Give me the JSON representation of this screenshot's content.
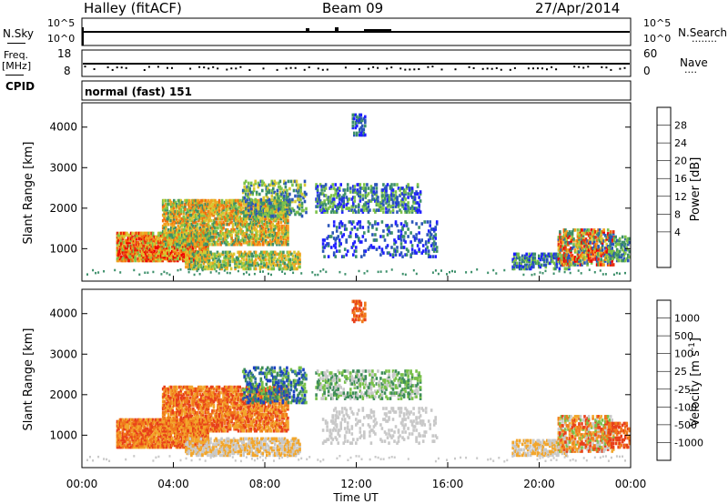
{
  "header": {
    "station": "Halley (fitACF)",
    "beam": "Beam 09",
    "date": "27/Apr/2014"
  },
  "nsky_panel": {
    "left_label": "N.Sky",
    "right_label": "N.Search",
    "right_dots": "........",
    "ticks": [
      "10^5",
      "10^0"
    ]
  },
  "freq_panel": {
    "left_label_line1": "Freq.",
    "left_label_line2": "[MHz]",
    "left_ticks": [
      "18",
      "8"
    ],
    "right_label": "Nave",
    "right_dots": "....",
    "right_ticks": [
      "60",
      "0"
    ]
  },
  "cpid": {
    "label": "CPID",
    "value": "normal (fast) 151"
  },
  "chart_data": [
    {
      "type": "heatmap",
      "name": "power",
      "ylabel": "Slant Range [km]",
      "yticks": [
        "4000",
        "3000",
        "2000",
        "1000"
      ],
      "ytick_values": [
        4000,
        3000,
        2000,
        1000
      ],
      "ylim": [
        200,
        4600
      ],
      "xlim_hours": [
        0,
        24
      ],
      "colorbar": {
        "label": "Power [dB]",
        "ticks": [
          "28",
          "24",
          "20",
          "16",
          "12",
          "8",
          "4"
        ],
        "colors": [
          "#1f1fff",
          "#2b55ba",
          "#3c8f6a",
          "#7cc24a",
          "#d9c832",
          "#f2a020",
          "#f07010",
          "#e83010",
          "#ee0000"
        ]
      }
    },
    {
      "type": "heatmap",
      "name": "velocity",
      "ylabel": "Slant Range [km]",
      "yticks": [
        "4000",
        "3000",
        "2000",
        "1000"
      ],
      "ytick_values": [
        4000,
        3000,
        2000,
        1000
      ],
      "ylim": [
        200,
        4600
      ],
      "xlim_hours": [
        0,
        24
      ],
      "colorbar": {
        "label": "Velocity [m s",
        "label_sup": "-1",
        "label_close": "]",
        "ticks": [
          "1000",
          "500",
          "100",
          "25",
          "-25",
          "-100",
          "-500",
          "-1000"
        ],
        "colors": [
          "#1c3fc2",
          "#2d6aa8",
          "#3d8c58",
          "#78c04a",
          "#c8c8c8",
          "#f2a62c",
          "#f07a1c",
          "#e8401a",
          "#ee0000"
        ]
      }
    }
  ],
  "x_axis": {
    "xlabel": "Time UT",
    "ticks": [
      "00:00",
      "04:00",
      "08:00",
      "12:00",
      "16:00",
      "20:00",
      "00:00"
    ],
    "tick_hours": [
      0,
      4,
      8,
      12,
      16,
      20,
      24
    ]
  }
}
